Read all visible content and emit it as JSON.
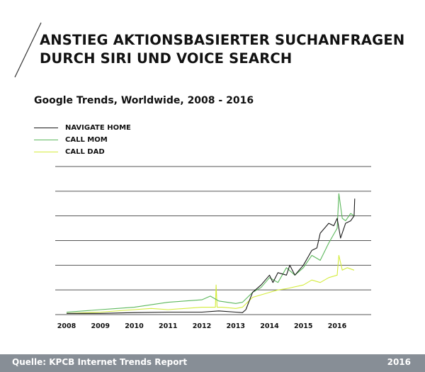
{
  "header": {
    "title_line1": "ANSTIEG AKTIONSBASIERTER SUCHANFRAGEN",
    "title_line2": "DURCH SIRI UND VOICE SEARCH"
  },
  "chart_data": {
    "type": "line",
    "title": "Google Trends, Worldwide, 2008 - 2016",
    "xlabel": "",
    "ylabel": "",
    "x_ticks": [
      "2008",
      "2009",
      "2010",
      "2011",
      "2012",
      "2013",
      "2014",
      "2015",
      "2016"
    ],
    "xlim": [
      2008,
      2017
    ],
    "ylim": [
      0,
      6
    ],
    "y_unit": "gridline steps (no y-axis labels printed)",
    "grid": "horizontal",
    "legend_position": "top-left",
    "series": [
      {
        "name": "NAVIGATE HOME",
        "color": "#1a1a1a",
        "x": [
          2008,
          2009,
          2010,
          2011,
          2012,
          2012.5,
          2013,
          2013.2,
          2013.3,
          2013.5,
          2013.75,
          2014,
          2014.1,
          2014.25,
          2014.5,
          2014.6,
          2014.75,
          2015,
          2015.25,
          2015.4,
          2015.5,
          2015.75,
          2015.9,
          2016,
          2016.1,
          2016.25,
          2016.4,
          2016.5,
          2016.52
        ],
        "y": [
          0.05,
          0.05,
          0.08,
          0.1,
          0.1,
          0.15,
          0.1,
          0.08,
          0.2,
          0.9,
          1.2,
          1.6,
          1.3,
          1.7,
          1.6,
          2.0,
          1.6,
          2.0,
          2.6,
          2.7,
          3.3,
          3.7,
          3.6,
          3.9,
          3.1,
          3.7,
          3.8,
          4.0,
          4.7
        ]
      },
      {
        "name": "CALL MOM",
        "color": "#5cb85c",
        "x": [
          2008,
          2008.5,
          2009,
          2009.5,
          2010,
          2010.5,
          2011,
          2011.5,
          2012,
          2012.25,
          2012.5,
          2013,
          2013.2,
          2013.5,
          2013.75,
          2014,
          2014.25,
          2014.5,
          2014.75,
          2015,
          2015.25,
          2015.5,
          2015.75,
          2016,
          2016.05,
          2016.15,
          2016.25,
          2016.4,
          2016.5
        ],
        "y": [
          0.1,
          0.15,
          0.2,
          0.25,
          0.3,
          0.4,
          0.5,
          0.55,
          0.6,
          0.75,
          0.55,
          0.45,
          0.5,
          0.9,
          1.1,
          1.5,
          1.3,
          1.9,
          1.6,
          1.9,
          2.4,
          2.2,
          2.9,
          3.5,
          4.9,
          3.9,
          3.8,
          4.1,
          4.0
        ]
      },
      {
        "name": "CALL DAD",
        "color": "#d4ec3c",
        "x": [
          2008,
          2009,
          2010,
          2010.5,
          2011,
          2011.5,
          2012,
          2012.4,
          2012.42,
          2012.45,
          2012.6,
          2013,
          2013.2,
          2013.5,
          2014,
          2014.25,
          2014.5,
          2015,
          2015.25,
          2015.5,
          2015.75,
          2016,
          2016.05,
          2016.15,
          2016.3,
          2016.5
        ],
        "y": [
          0.05,
          0.1,
          0.2,
          0.25,
          0.2,
          0.25,
          0.3,
          0.3,
          1.2,
          0.3,
          0.3,
          0.25,
          0.3,
          0.7,
          0.9,
          1.0,
          1.05,
          1.2,
          1.4,
          1.3,
          1.5,
          1.6,
          2.4,
          1.8,
          1.9,
          1.8
        ]
      }
    ]
  },
  "footer": {
    "source": "Quelle: KPCB Internet Trends Report",
    "year": "2016"
  }
}
